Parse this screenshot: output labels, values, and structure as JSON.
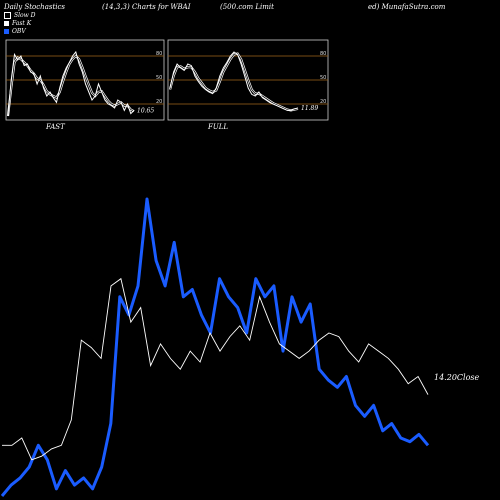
{
  "header": {
    "left": "Daily Stochastics",
    "mid1": "(14,3,3) Charts for WBAI",
    "mid2": "(500.com Limit",
    "right": "ed) MunafaSutra.com"
  },
  "legend": [
    {
      "label": "Slow  D",
      "color": "#000000",
      "border": "#ffffff"
    },
    {
      "label": "Fast K",
      "color": "#ffffff",
      "border": "#ffffff"
    },
    {
      "label": "OBV",
      "color": "#1a5cff",
      "border": "#1a5cff"
    }
  ],
  "colors": {
    "background": "#000000",
    "grid": "#a0651a",
    "obv": "#1a5cff",
    "price": "#ffffff"
  },
  "chart_data": [
    {
      "type": "line",
      "title": "FAST",
      "yticks": [
        20,
        50,
        80
      ],
      "ylim": [
        0,
        100
      ],
      "end_label": "10.65",
      "series": [
        {
          "name": "Fast K",
          "values": [
            5,
            50,
            82,
            75,
            80,
            68,
            70,
            60,
            58,
            45,
            55,
            40,
            30,
            35,
            28,
            22,
            40,
            55,
            65,
            72,
            80,
            85,
            70,
            60,
            45,
            35,
            25,
            30,
            45,
            35,
            25,
            20,
            18,
            15,
            25,
            22,
            12,
            20,
            8,
            12
          ]
        },
        {
          "name": "Slow  D",
          "values": [
            5,
            40,
            72,
            78,
            76,
            72,
            68,
            62,
            58,
            52,
            50,
            44,
            36,
            32,
            30,
            28,
            35,
            48,
            60,
            70,
            76,
            80,
            76,
            66,
            55,
            44,
            34,
            30,
            35,
            36,
            30,
            24,
            20,
            18,
            20,
            22,
            18,
            18,
            13,
            11
          ]
        }
      ]
    },
    {
      "type": "line",
      "title": "FULL",
      "yticks": [
        20,
        50,
        80
      ],
      "ylim": [
        0,
        100
      ],
      "end_label": "11.89",
      "series": [
        {
          "name": "Fast K",
          "values": [
            40,
            60,
            70,
            65,
            62,
            70,
            68,
            55,
            48,
            42,
            38,
            35,
            33,
            40,
            55,
            65,
            72,
            80,
            85,
            82,
            70,
            55,
            40,
            32,
            30,
            35,
            28,
            25,
            22,
            20,
            18,
            16,
            14,
            12,
            12,
            14,
            15
          ]
        },
        {
          "name": "Slow  D",
          "values": [
            38,
            55,
            66,
            67,
            64,
            66,
            66,
            60,
            52,
            46,
            40,
            37,
            35,
            37,
            48,
            60,
            68,
            76,
            82,
            83,
            76,
            63,
            50,
            38,
            33,
            33,
            30,
            27,
            24,
            21,
            19,
            17,
            15,
            13,
            12,
            13,
            14
          ]
        }
      ]
    },
    {
      "type": "line",
      "title": "",
      "close_label": "14.20Close",
      "series": [
        {
          "name": "OBV",
          "values": [
            0,
            3,
            5,
            8,
            14,
            10,
            2,
            7,
            3,
            5,
            2,
            8,
            20,
            55,
            50,
            58,
            82,
            65,
            58,
            70,
            55,
            57,
            50,
            45,
            60,
            55,
            52,
            45,
            60,
            55,
            58,
            40,
            55,
            48,
            53,
            35,
            32,
            30,
            33,
            25,
            22,
            25,
            18,
            20,
            16,
            15,
            17,
            14
          ]
        },
        {
          "name": "Price",
          "values": [
            14,
            14,
            16,
            10,
            11,
            13,
            14,
            21,
            43,
            41,
            38,
            58,
            60,
            48,
            52,
            36,
            42,
            38,
            35,
            40,
            37,
            45,
            40,
            44,
            47,
            43,
            55,
            48,
            42,
            40,
            38,
            40,
            43,
            45,
            44,
            40,
            37,
            42,
            40,
            38,
            35,
            31,
            33,
            28
          ]
        }
      ]
    }
  ]
}
